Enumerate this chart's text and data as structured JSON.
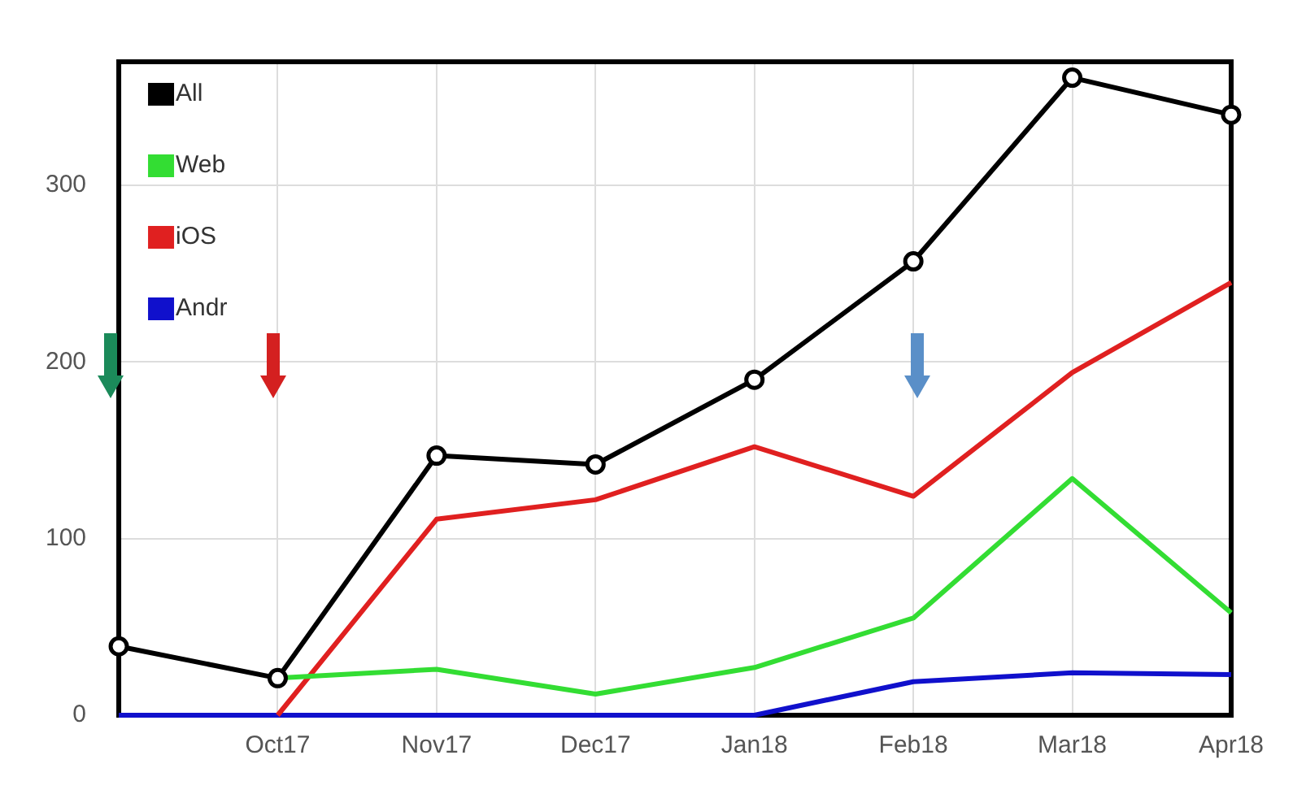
{
  "chart_data": {
    "type": "line",
    "categories": [
      null,
      "Oct17",
      "Nov17",
      "Dec17",
      "Jan18",
      "Feb18",
      "Mar18",
      "Apr18"
    ],
    "series": [
      {
        "name": "All",
        "color": "#000000",
        "marker": "circle",
        "values": [
          39,
          21,
          147,
          142,
          190,
          257,
          361,
          340
        ]
      },
      {
        "name": "Web",
        "color": "#33dd33",
        "marker": "none",
        "values": [
          null,
          21,
          26,
          12,
          27,
          55,
          134,
          58
        ]
      },
      {
        "name": "iOS",
        "color": "#e02020",
        "marker": "none",
        "values": [
          null,
          0,
          111,
          122,
          152,
          124,
          194,
          245
        ]
      },
      {
        "name": "Andr",
        "color": "#1010cc",
        "marker": "none",
        "values": [
          0,
          0,
          0,
          0,
          0,
          19,
          24,
          23
        ]
      }
    ],
    "ylim": [
      0,
      370
    ],
    "yticks": [
      0,
      100,
      200,
      300
    ],
    "grid": true,
    "legend": "top left"
  }
}
